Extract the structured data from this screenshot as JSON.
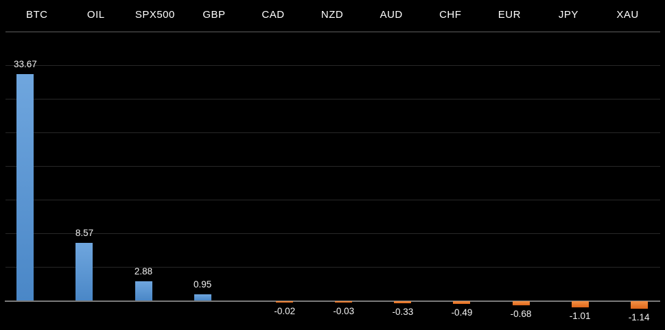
{
  "chart_data": {
    "type": "bar",
    "categories": [
      "BTC",
      "OIL",
      "SPX500",
      "GBP",
      "CAD",
      "NZD",
      "AUD",
      "CHF",
      "EUR",
      "JPY",
      "XAU"
    ],
    "values": [
      33.67,
      8.57,
      2.88,
      0.95,
      -0.02,
      -0.03,
      -0.33,
      -0.49,
      -0.68,
      -1.01,
      -1.14
    ],
    "value_labels": [
      "33.67",
      "8.57",
      "2.88",
      "0.95",
      "-0.02",
      "-0.03",
      "-0.33",
      "-0.49",
      "-0.68",
      "-1.01",
      "-1.14"
    ],
    "title": "",
    "xlabel": "",
    "ylabel": "",
    "axis": {
      "ymin": -5,
      "ymax": 40,
      "grid_step": 5,
      "tick_labels_shown": false
    },
    "grid": true,
    "legend": "none",
    "label_position": "outside-end"
  },
  "colors": {
    "background": "#000000",
    "positive_bar": "#5B9BD5",
    "positive_bar_light": "#6FA6DE",
    "positive_bar_dark": "#4A87C7",
    "negative_bar": "#ED7D31",
    "negative_bar_light": "#F29045",
    "negative_bar_dark": "#DE671B",
    "gridline": "#282828",
    "header_line": "#5E5E5E",
    "axis_line": "#7A7A7A",
    "header_text": "#FFFFFF",
    "value_text": "#F2F2F2"
  }
}
